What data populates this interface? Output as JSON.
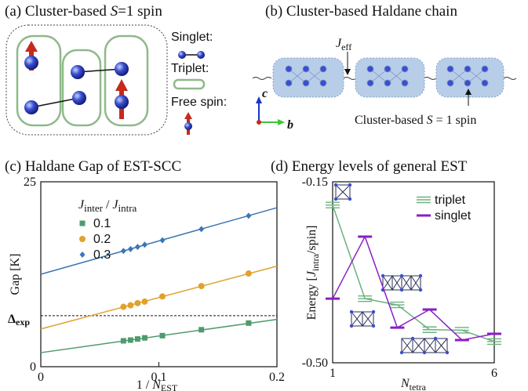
{
  "diagrams": {
    "a": {
      "title": [
        "(a) Cluster-based ",
        "S",
        "=1 spin"
      ],
      "legend": [
        "Singlet:",
        "Triplet:",
        "Free spin:"
      ]
    },
    "b": {
      "title": "(b) Cluster-based Haldane chain",
      "coupling": [
        "J",
        "eff"
      ],
      "axes": [
        "c",
        "b"
      ],
      "caption": [
        "Cluster-based ",
        "S",
        " = 1 spin"
      ]
    }
  },
  "chart_data": [
    {
      "type": "scatter",
      "title": "(c) Haldane Gap of EST-SCC",
      "xlabel": [
        "1 / ",
        "N",
        "EST"
      ],
      "ylabel": "Gap [K]",
      "legend_title": [
        "J",
        "inter",
        " / ",
        "J",
        "intra"
      ],
      "xlim": [
        0,
        0.2
      ],
      "xticks": [
        0,
        0.1,
        0.2
      ],
      "ylim": [
        0,
        25
      ],
      "yticks": [
        0,
        25
      ],
      "hline": {
        "value": 6.9,
        "label": [
          "Δ",
          "exp"
        ]
      },
      "x": [
        0.07,
        0.076,
        0.082,
        0.088,
        0.103,
        0.136,
        0.176
      ],
      "series": [
        {
          "name": "0.1",
          "color": "#4f9a6f",
          "marker": "square",
          "values": [
            3.5,
            3.6,
            3.75,
            3.9,
            4.2,
            5.0,
            5.9
          ],
          "fit": [
            1.9,
            6.4
          ]
        },
        {
          "name": "0.2",
          "color": "#e0a22c",
          "marker": "circle",
          "values": [
            8.1,
            8.3,
            8.6,
            8.8,
            9.5,
            10.9,
            12.6
          ],
          "fit": [
            5.1,
            13.6
          ]
        },
        {
          "name": "0.3",
          "color": "#3b76b4",
          "marker": "diamond",
          "values": [
            15.65,
            15.9,
            16.2,
            16.5,
            17.1,
            18.6,
            20.4
          ],
          "fit": [
            12.5,
            21.5
          ]
        }
      ]
    },
    {
      "type": "line",
      "title": "(d) Energy levels of general EST",
      "xlabel": [
        "N",
        "tetra"
      ],
      "ylabel": [
        "Energy [",
        "J",
        "intra",
        "/spin]"
      ],
      "xlim": [
        1,
        6
      ],
      "xticks": [
        1,
        6
      ],
      "ylim": [
        -0.5,
        -0.15
      ],
      "yticks": [
        {
          "value": -0.5,
          "label": "-0.50"
        },
        -0.15
      ],
      "x": [
        1,
        2,
        3,
        4,
        5,
        6
      ],
      "series": [
        {
          "name": "triplet",
          "color": "#6cb27e",
          "marker": "triple-bar",
          "values": [
            -0.195,
            -0.376,
            -0.388,
            -0.436,
            -0.437,
            -0.459
          ]
        },
        {
          "name": "singlet",
          "color": "#8a1fc6",
          "marker": "bar",
          "values": [
            -0.376,
            -0.256,
            -0.432,
            -0.397,
            -0.456,
            -0.444
          ]
        }
      ]
    }
  ]
}
